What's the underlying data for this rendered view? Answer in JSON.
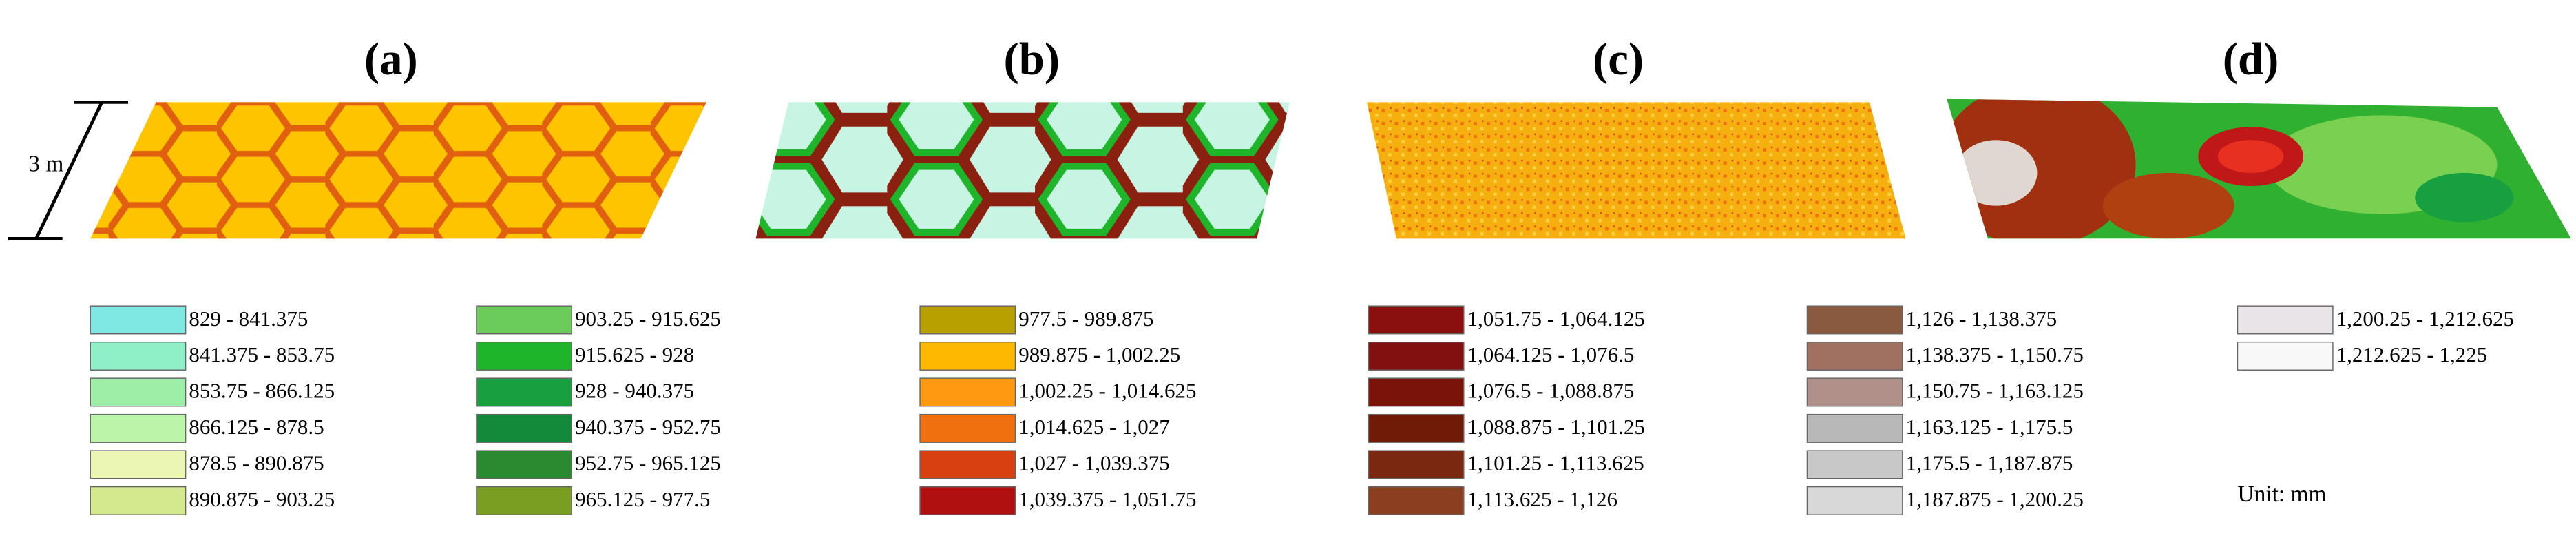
{
  "panels": [
    {
      "label": "(a)"
    },
    {
      "label": "(b)"
    },
    {
      "label": "(c)"
    },
    {
      "label": "(d)"
    }
  ],
  "scale_label": "3 m",
  "legend": {
    "columns": [
      [
        {
          "label": "829 - 841.375",
          "color": "#80e8e2"
        },
        {
          "label": "841.375 - 853.75",
          "color": "#8ff0c8"
        },
        {
          "label": "853.75 - 866.125",
          "color": "#9eeea8"
        },
        {
          "label": "866.125 - 878.5",
          "color": "#baf5aa"
        },
        {
          "label": "878.5 - 890.875",
          "color": "#eaf6b2"
        },
        {
          "label": "890.875 - 903.25",
          "color": "#d4e88e"
        }
      ],
      [
        {
          "label": "903.25 - 915.625",
          "color": "#6ccc5a"
        },
        {
          "label": "915.625 - 928",
          "color": "#1fb52a"
        },
        {
          "label": "928 - 940.375",
          "color": "#18a040"
        },
        {
          "label": "940.375 - 952.75",
          "color": "#128a3a"
        },
        {
          "label": "952.75 - 965.125",
          "color": "#2a8a30"
        },
        {
          "label": "965.125 - 977.5",
          "color": "#7a9e22"
        }
      ],
      [
        {
          "label": "977.5 - 989.875",
          "color": "#b8a000"
        },
        {
          "label": "989.875 - 1,002.25",
          "color": "#ffb800"
        },
        {
          "label": "1,002.25 - 1,014.625",
          "color": "#ff9a10"
        },
        {
          "label": "1,014.625 - 1,027",
          "color": "#f07010"
        },
        {
          "label": "1,027 - 1,039.375",
          "color": "#d84010"
        },
        {
          "label": "1,039.375 - 1,051.75",
          "color": "#b01010"
        }
      ],
      [
        {
          "label": "1,051.75 - 1,064.125",
          "color": "#8a1010"
        },
        {
          "label": "1,064.125 - 1,076.5",
          "color": "#821010"
        },
        {
          "label": "1,076.5 - 1,088.875",
          "color": "#7a1408"
        },
        {
          "label": "1,088.875 - 1,101.25",
          "color": "#701a08"
        },
        {
          "label": "1,101.25 - 1,113.625",
          "color": "#7a2810"
        },
        {
          "label": "1,113.625 - 1,126",
          "color": "#8a4020"
        }
      ],
      [
        {
          "label": "1,126 - 1,138.375",
          "color": "#8a5a40"
        },
        {
          "label": "1,138.375 - 1,150.75",
          "color": "#a07060"
        },
        {
          "label": "1,150.75 - 1,163.125",
          "color": "#b09088"
        },
        {
          "label": "1,163.125 - 1,175.5",
          "color": "#b8b8b8"
        },
        {
          "label": "1,175.5 - 1,187.875",
          "color": "#c8c8c8"
        },
        {
          "label": "1,187.875 - 1,200.25",
          "color": "#d8d8d8"
        }
      ],
      [
        {
          "label": "1,200.25 - 1,212.625",
          "color": "#e8e4e8"
        },
        {
          "label": "1,212.625 - 1,225",
          "color": "#f8f8f8"
        }
      ]
    ]
  },
  "unit": "Unit: mm"
}
